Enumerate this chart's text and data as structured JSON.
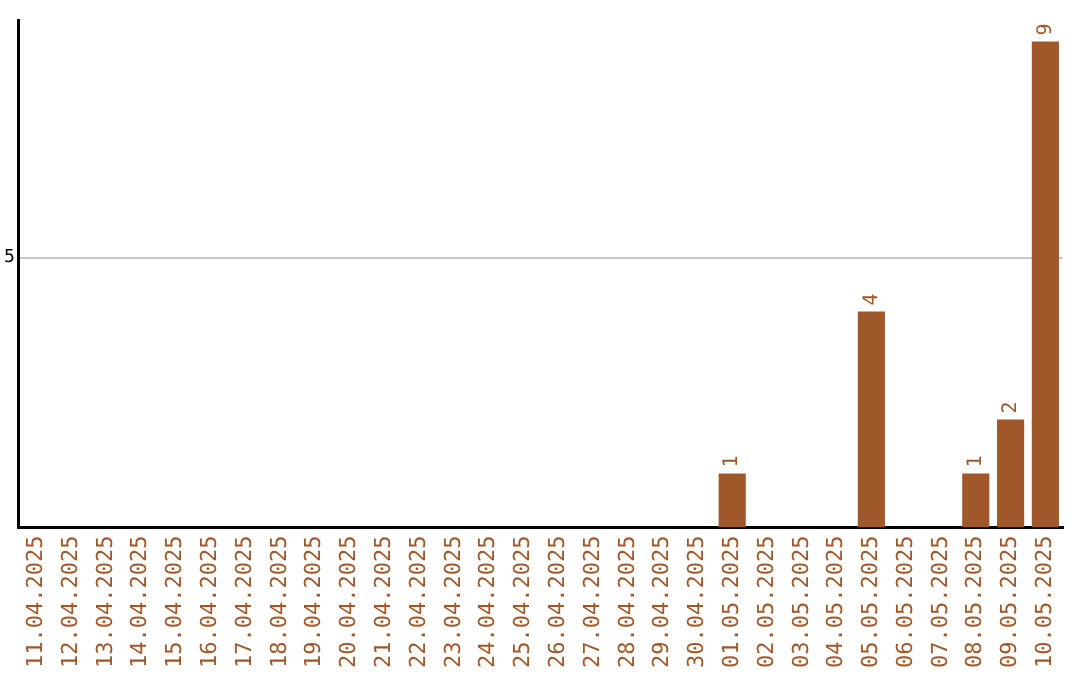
{
  "chart_data": {
    "type": "bar",
    "categories": [
      "11.04.2025",
      "12.04.2025",
      "13.04.2025",
      "14.04.2025",
      "15.04.2025",
      "16.04.2025",
      "17.04.2025",
      "18.04.2025",
      "19.04.2025",
      "20.04.2025",
      "21.04.2025",
      "22.04.2025",
      "23.04.2025",
      "24.04.2025",
      "25.04.2025",
      "26.04.2025",
      "27.04.2025",
      "28.04.2025",
      "29.04.2025",
      "30.04.2025",
      "01.05.2025",
      "02.05.2025",
      "03.05.2025",
      "04.05.2025",
      "05.05.2025",
      "06.05.2025",
      "07.05.2025",
      "08.05.2025",
      "09.05.2025",
      "10.05.2025"
    ],
    "values": [
      null,
      null,
      null,
      null,
      null,
      null,
      null,
      null,
      null,
      null,
      null,
      null,
      null,
      null,
      null,
      null,
      null,
      null,
      null,
      null,
      1,
      null,
      null,
      null,
      4,
      null,
      null,
      1,
      2,
      9
    ],
    "color": "#a0582a",
    "ylim": [
      0,
      9.4
    ],
    "yticks": [
      5
    ],
    "grid": "y",
    "data_labels": true
  }
}
